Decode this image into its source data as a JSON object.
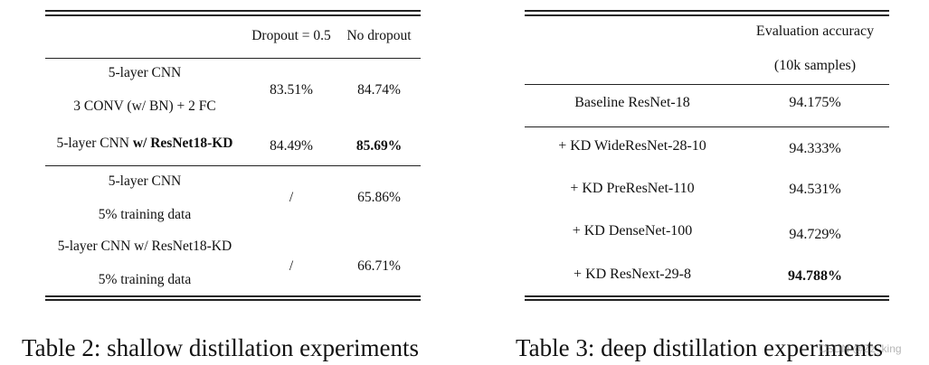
{
  "table2": {
    "col_headers": [
      "Dropout = 0.5",
      "No dropout"
    ],
    "rows": [
      {
        "label_line1": "5-layer CNN",
        "label_line2": "3 CONV (w/ BN) + 2 FC",
        "dropout": "83.51%",
        "no_dropout": "84.74%"
      },
      {
        "label_plain": "5-layer CNN ",
        "label_bold": "w/ ResNet18-KD",
        "dropout": "84.49%",
        "no_dropout": "85.69%"
      },
      {
        "label_line1": "5-layer CNN",
        "label_line2": "5% training data",
        "dropout": "/",
        "no_dropout": "65.86%"
      },
      {
        "label_line1": "5-layer CNN w/ ResNet18-KD",
        "label_line2": "5% training data",
        "dropout": "/",
        "no_dropout": "66.71%"
      }
    ],
    "caption": "Table 2: shallow distillation experiments"
  },
  "table3": {
    "col_header_line1": "Evaluation accuracy",
    "col_header_line2": "(10k samples)",
    "rows": [
      {
        "label": "Baseline ResNet-18",
        "value": "94.175%"
      },
      {
        "label": "+ KD WideResNet-28-10",
        "value": "94.333%"
      },
      {
        "label": "+ KD PreResNet-110",
        "value": "94.531%"
      },
      {
        "label": "+ KD DenseNet-100",
        "value": "94.729%"
      },
      {
        "label": "+ KD ResNext-29-8",
        "value": "94.788%"
      }
    ],
    "caption": "Table 3: deep distillation experiments"
  },
  "watermark": "CSDN @Zz_king"
}
